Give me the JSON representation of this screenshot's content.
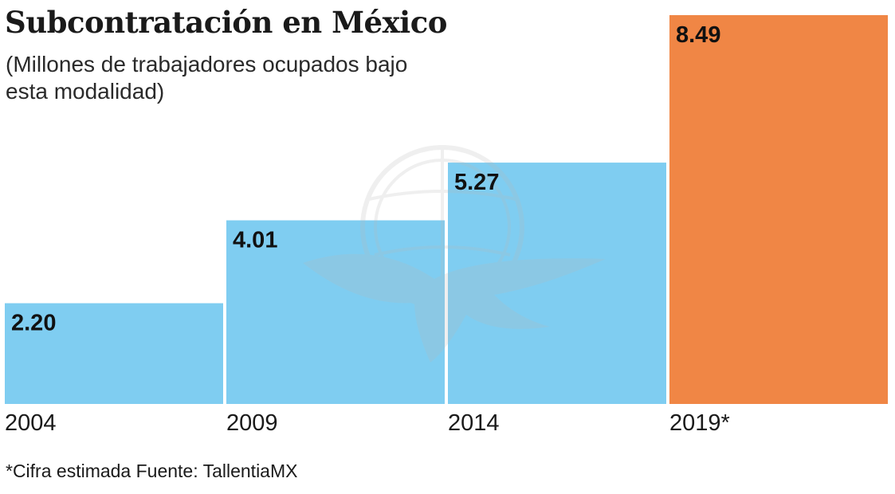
{
  "title": "Subcontratación en México",
  "subtitle": "(Millones de trabajadores ocupados bajo esta modalidad)",
  "footnote": "*Cifra estimada Fuente: TallentiaMX",
  "colors": {
    "regular": "#7fcdf1",
    "highlight": "#f08645",
    "watermark": "#b9b9b9"
  },
  "chart_data": {
    "type": "bar",
    "title": "Subcontratación en México",
    "ylabel": "Millones de trabajadores ocupados bajo esta modalidad",
    "categories": [
      "2004",
      "2009",
      "2014",
      "2019*"
    ],
    "values": [
      2.2,
      4.01,
      5.27,
      8.49
    ],
    "value_labels": [
      "2.20",
      "4.01",
      "5.27",
      "8.49"
    ],
    "highlighted_category": "2019*",
    "ylim": [
      0,
      8.49
    ],
    "grid": false
  }
}
